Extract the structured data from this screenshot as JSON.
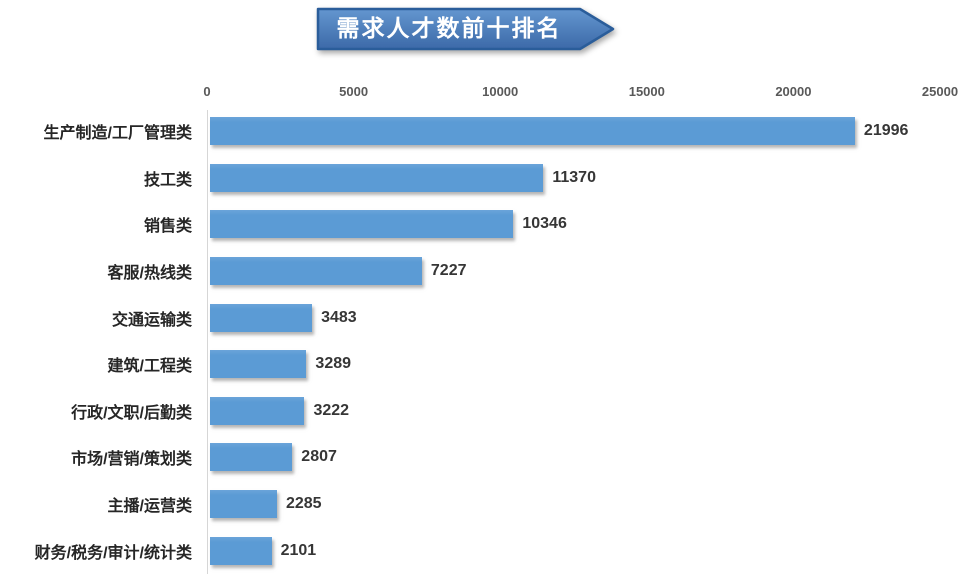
{
  "title": "需求人才数前十排名",
  "colors": {
    "bar": "#5b9bd5",
    "banner_fill_top": "#6396cf",
    "banner_fill_bottom": "#3c69a8",
    "banner_border": "#2a5d9a",
    "axis_line": "#d6d6d6",
    "label_text": "#262626",
    "tick_text": "#595959"
  },
  "chart_data": {
    "type": "bar",
    "orientation": "horizontal",
    "title": "需求人才数前十排名",
    "categories": [
      "生产制造/工厂管理类",
      "技工类",
      "销售类",
      "客服/热线类",
      "交通运输类",
      "建筑/工程类",
      "行政/文职/后勤类",
      "市场/营销/策划类",
      "主播/运营类",
      "财务/税务/审计/统计类"
    ],
    "values": [
      21996,
      11370,
      10346,
      7227,
      3483,
      3289,
      3222,
      2807,
      2285,
      2101
    ],
    "xlim": [
      0,
      25000
    ],
    "ticks": [
      "0",
      "5000",
      "10000",
      "15000",
      "20000",
      "25000"
    ],
    "xlabel": "",
    "ylabel": "",
    "grid": false,
    "legend": false,
    "value_labels": true
  }
}
